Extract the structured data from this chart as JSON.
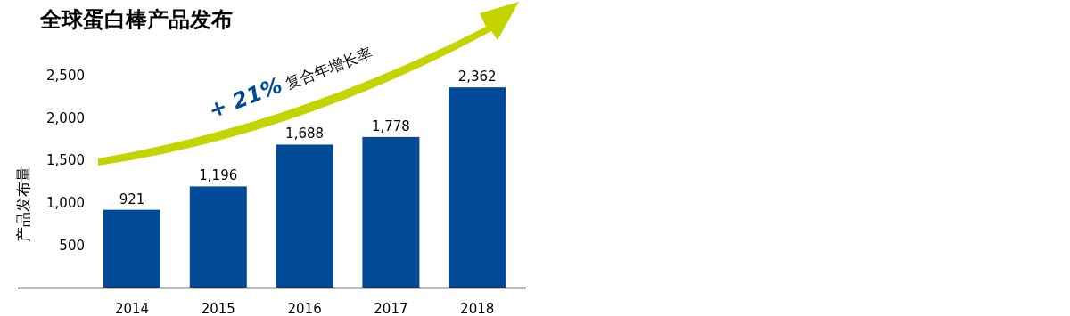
{
  "chart_data": {
    "type": "bar",
    "title": "全球蛋白棒产品发布",
    "ylabel": "产品发布量",
    "categories": [
      "2014",
      "2015",
      "2016",
      "2017",
      "2018"
    ],
    "values": [
      921,
      1196,
      1688,
      1778,
      2362
    ],
    "color": "#004a98",
    "value_labels": [
      "921",
      "1,196",
      "1,688",
      "1,778",
      "2,362"
    ],
    "ylim": [
      0,
      2500
    ],
    "yticks": [
      500,
      {
        "value": 1000,
        "label": "1,000"
      },
      {
        "value": 1500,
        "label": "1,500"
      },
      {
        "value": 2000,
        "label": "2,000"
      },
      {
        "value": 2500,
        "label": "2,500"
      }
    ],
    "annotations": [
      "**+ 21%** 复合年增长率"
    ]
  }
}
